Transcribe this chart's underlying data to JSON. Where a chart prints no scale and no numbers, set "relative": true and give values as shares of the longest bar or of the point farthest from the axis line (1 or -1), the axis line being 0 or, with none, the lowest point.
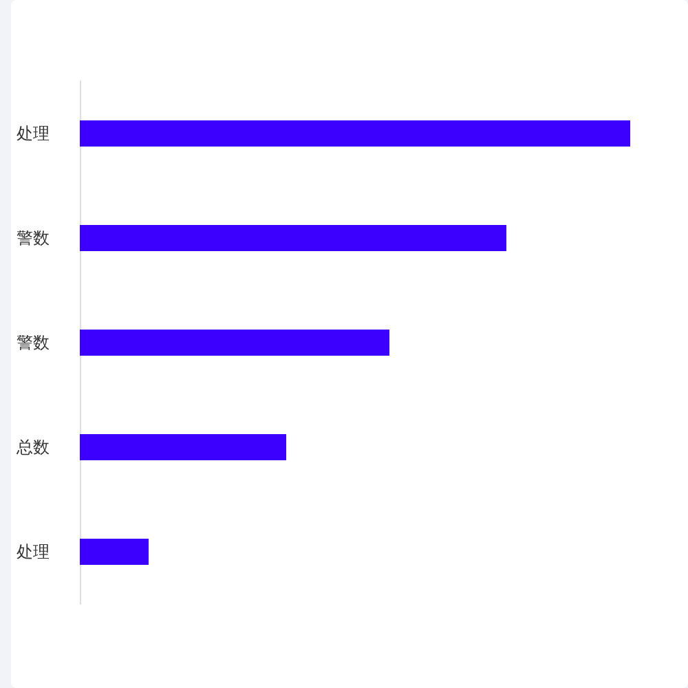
{
  "chart_data": {
    "type": "bar",
    "orientation": "horizontal",
    "relative": true,
    "categories": [
      "处理",
      "警数",
      "警数",
      "总数",
      "处理"
    ],
    "values": [
      1,
      0.775,
      0.5625,
      0.375,
      0.125
    ],
    "color": "#3b00ff"
  }
}
